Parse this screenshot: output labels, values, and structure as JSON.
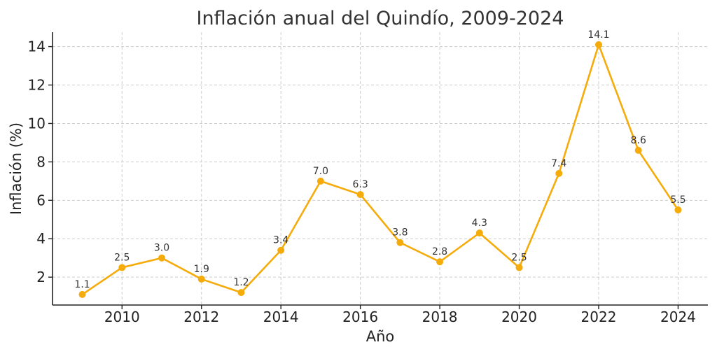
{
  "chart_data": {
    "type": "line",
    "title": "Inflación anual del Quindío, 2009-2024",
    "xlabel": "Año",
    "ylabel": "Inflación (%)",
    "x": [
      2009,
      2010,
      2011,
      2012,
      2013,
      2014,
      2015,
      2016,
      2017,
      2018,
      2019,
      2020,
      2021,
      2022,
      2023,
      2024
    ],
    "series": [
      {
        "values": [
          1.1,
          2.5,
          3.0,
          1.9,
          1.2,
          3.4,
          7.0,
          6.3,
          3.8,
          2.8,
          4.3,
          2.5,
          7.4,
          14.1,
          8.6,
          5.5
        ],
        "labels": [
          "1.1",
          "2.5",
          "3.0",
          "1.9",
          "1.2",
          "3.4",
          "7.0",
          "6.3",
          "3.8",
          "2.8",
          "4.3",
          "2.5",
          "7.4",
          "14.1",
          "8.6",
          "5.5"
        ],
        "color": "#F5AB0A"
      }
    ],
    "xlim": [
      2008.25,
      2024.75
    ],
    "ylim": [
      0.55,
      14.75
    ],
    "xticks": [
      2010,
      2012,
      2014,
      2016,
      2018,
      2020,
      2022,
      2024
    ],
    "yticks": [
      2,
      4,
      6,
      8,
      10,
      12,
      14
    ],
    "grid": true
  }
}
